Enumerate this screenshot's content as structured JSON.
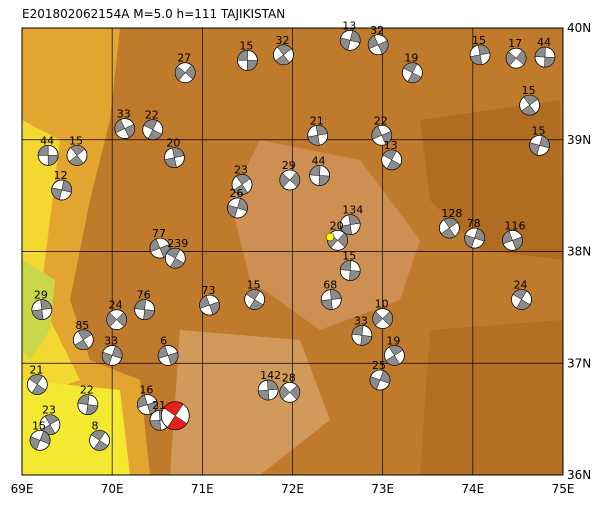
{
  "map": {
    "title": "E201802062154A  M=5.0  h=111  TAJIKISTAN",
    "xlim": [
      69,
      75
    ],
    "ylim": [
      36,
      40
    ],
    "xticks": [
      {
        "value": 69,
        "label": "69E"
      },
      {
        "value": 70,
        "label": "70E"
      },
      {
        "value": 71,
        "label": "71E"
      },
      {
        "value": 72,
        "label": "72E"
      },
      {
        "value": 73,
        "label": "73E"
      },
      {
        "value": 74,
        "label": "74E"
      },
      {
        "value": 75,
        "label": "75E"
      }
    ],
    "yticks": [
      {
        "value": 40,
        "label": "40N"
      },
      {
        "value": 39,
        "label": "39N"
      },
      {
        "value": 38,
        "label": "38N"
      },
      {
        "value": 37,
        "label": "37N"
      },
      {
        "value": 36,
        "label": "36N"
      }
    ],
    "main_event": {
      "lon": 70.7,
      "lat": 36.53,
      "color": "#e8201c"
    },
    "events": [
      {
        "label": "44",
        "lon": 69.29,
        "lat": 38.86
      },
      {
        "label": "15",
        "lon": 69.61,
        "lat": 38.86
      },
      {
        "label": "12",
        "lon": 69.44,
        "lat": 38.55
      },
      {
        "label": "33",
        "lon": 70.14,
        "lat": 39.1
      },
      {
        "label": "22",
        "lon": 70.45,
        "lat": 39.09
      },
      {
        "label": "20",
        "lon": 70.69,
        "lat": 38.84
      },
      {
        "label": "27",
        "lon": 70.81,
        "lat": 39.6
      },
      {
        "label": "15",
        "lon": 71.5,
        "lat": 39.71
      },
      {
        "label": "32",
        "lon": 71.9,
        "lat": 39.76
      },
      {
        "label": "13",
        "lon": 72.64,
        "lat": 39.89
      },
      {
        "label": "32",
        "lon": 72.95,
        "lat": 39.85
      },
      {
        "label": "19",
        "lon": 73.33,
        "lat": 39.6
      },
      {
        "label": "15",
        "lon": 74.08,
        "lat": 39.76
      },
      {
        "label": "17",
        "lon": 74.48,
        "lat": 39.73
      },
      {
        "label": "44",
        "lon": 74.8,
        "lat": 39.74
      },
      {
        "label": "15",
        "lon": 74.63,
        "lat": 39.31
      },
      {
        "label": "15",
        "lon": 74.74,
        "lat": 38.95
      },
      {
        "label": "22",
        "lon": 72.99,
        "lat": 39.04
      },
      {
        "label": "13",
        "lon": 73.1,
        "lat": 38.82
      },
      {
        "label": "21",
        "lon": 72.28,
        "lat": 39.04
      },
      {
        "label": "29",
        "lon": 71.97,
        "lat": 38.64
      },
      {
        "label": "44",
        "lon": 72.3,
        "lat": 38.68
      },
      {
        "label": "23",
        "lon": 71.44,
        "lat": 38.6
      },
      {
        "label": "26",
        "lon": 71.39,
        "lat": 38.39
      },
      {
        "label": "77",
        "lon": 70.53,
        "lat": 38.03
      },
      {
        "label": "239",
        "lon": 70.7,
        "lat": 37.94
      },
      {
        "label": "134",
        "lon": 72.64,
        "lat": 38.24
      },
      {
        "label": "20",
        "lon": 72.5,
        "lat": 38.1
      },
      {
        "label": "15",
        "lon": 72.64,
        "lat": 37.83
      },
      {
        "label": "128",
        "lon": 73.74,
        "lat": 38.21
      },
      {
        "label": "78",
        "lon": 74.02,
        "lat": 38.12
      },
      {
        "label": "116",
        "lon": 74.44,
        "lat": 38.1
      },
      {
        "label": "24",
        "lon": 74.54,
        "lat": 37.57
      },
      {
        "label": "29",
        "lon": 69.22,
        "lat": 37.48
      },
      {
        "label": "24",
        "lon": 70.05,
        "lat": 37.39
      },
      {
        "label": "76",
        "lon": 70.36,
        "lat": 37.48
      },
      {
        "label": "85",
        "lon": 69.68,
        "lat": 37.21
      },
      {
        "label": "33",
        "lon": 70.0,
        "lat": 37.07
      },
      {
        "label": "73",
        "lon": 71.08,
        "lat": 37.52
      },
      {
        "label": "15",
        "lon": 71.58,
        "lat": 37.57
      },
      {
        "label": "68",
        "lon": 72.43,
        "lat": 37.57
      },
      {
        "label": "10",
        "lon": 73.0,
        "lat": 37.4
      },
      {
        "label": "33",
        "lon": 72.77,
        "lat": 37.25
      },
      {
        "label": "19",
        "lon": 73.13,
        "lat": 37.07
      },
      {
        "label": "25",
        "lon": 72.97,
        "lat": 36.85
      },
      {
        "label": "6",
        "lon": 70.62,
        "lat": 37.07
      },
      {
        "label": "21",
        "lon": 69.17,
        "lat": 36.81
      },
      {
        "label": "142",
        "lon": 71.73,
        "lat": 36.76
      },
      {
        "label": "28",
        "lon": 71.97,
        "lat": 36.74
      },
      {
        "label": "22",
        "lon": 69.73,
        "lat": 36.63
      },
      {
        "label": "23",
        "lon": 69.31,
        "lat": 36.45
      },
      {
        "label": "15",
        "lon": 69.2,
        "lat": 36.31
      },
      {
        "label": "16",
        "lon": 70.39,
        "lat": 36.63
      },
      {
        "label": "8",
        "lon": 69.86,
        "lat": 36.31
      },
      {
        "label": "21",
        "lon": 70.53,
        "lat": 36.49
      }
    ]
  }
}
